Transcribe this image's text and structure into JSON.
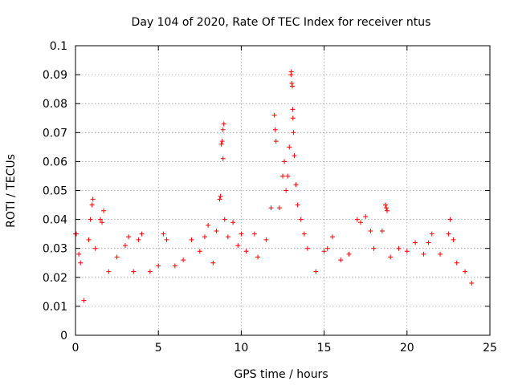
{
  "chart_data": {
    "type": "scatter",
    "title": "Day 104 of 2020, Rate Of TEC Index for receiver ntus",
    "xlabel": "GPS time / hours",
    "ylabel": "ROTI / TECUs",
    "xlim": [
      0,
      25
    ],
    "ylim": [
      0,
      0.1
    ],
    "x_ticks": [
      "0",
      "5",
      "10",
      "15",
      "20",
      "25"
    ],
    "y_ticks": [
      "0",
      "0.01",
      "0.02",
      "0.03",
      "0.04",
      "0.05",
      "0.06",
      "0.07",
      "0.08",
      "0.09",
      "0.1"
    ],
    "grid": true,
    "marker": "+",
    "color": "#ff0000",
    "series": [
      {
        "points": [
          [
            0.0,
            0.035
          ],
          [
            0.05,
            0.035
          ],
          [
            0.2,
            0.028
          ],
          [
            0.3,
            0.025
          ],
          [
            0.5,
            0.012
          ],
          [
            0.8,
            0.033
          ],
          [
            0.9,
            0.04
          ],
          [
            1.0,
            0.045
          ],
          [
            1.05,
            0.047
          ],
          [
            1.2,
            0.03
          ],
          [
            1.5,
            0.04
          ],
          [
            1.6,
            0.039
          ],
          [
            1.7,
            0.043
          ],
          [
            2.0,
            0.022
          ],
          [
            2.5,
            0.027
          ],
          [
            3.0,
            0.031
          ],
          [
            3.2,
            0.034
          ],
          [
            3.5,
            0.022
          ],
          [
            3.8,
            0.033
          ],
          [
            4.0,
            0.035
          ],
          [
            4.5,
            0.022
          ],
          [
            5.0,
            0.024
          ],
          [
            5.3,
            0.035
          ],
          [
            5.5,
            0.033
          ],
          [
            6.0,
            0.024
          ],
          [
            6.5,
            0.026
          ],
          [
            7.0,
            0.033
          ],
          [
            7.5,
            0.029
          ],
          [
            7.8,
            0.034
          ],
          [
            8.0,
            0.038
          ],
          [
            8.3,
            0.025
          ],
          [
            8.5,
            0.036
          ],
          [
            8.7,
            0.047
          ],
          [
            8.75,
            0.048
          ],
          [
            8.8,
            0.066
          ],
          [
            8.85,
            0.067
          ],
          [
            8.9,
            0.071
          ],
          [
            8.95,
            0.073
          ],
          [
            8.9,
            0.061
          ],
          [
            9.0,
            0.04
          ],
          [
            9.2,
            0.034
          ],
          [
            9.5,
            0.039
          ],
          [
            9.8,
            0.031
          ],
          [
            10.0,
            0.035
          ],
          [
            10.3,
            0.029
          ],
          [
            10.8,
            0.035
          ],
          [
            11.0,
            0.027
          ],
          [
            11.5,
            0.033
          ],
          [
            11.8,
            0.044
          ],
          [
            12.0,
            0.076
          ],
          [
            12.05,
            0.071
          ],
          [
            12.1,
            0.067
          ],
          [
            12.3,
            0.044
          ],
          [
            12.5,
            0.055
          ],
          [
            12.6,
            0.06
          ],
          [
            12.7,
            0.05
          ],
          [
            12.8,
            0.055
          ],
          [
            12.9,
            0.065
          ],
          [
            13.0,
            0.09
          ],
          [
            13.02,
            0.091
          ],
          [
            13.05,
            0.087
          ],
          [
            13.08,
            0.086
          ],
          [
            13.1,
            0.078
          ],
          [
            13.12,
            0.075
          ],
          [
            13.15,
            0.07
          ],
          [
            13.2,
            0.062
          ],
          [
            13.3,
            0.052
          ],
          [
            13.4,
            0.045
          ],
          [
            13.6,
            0.04
          ],
          [
            13.8,
            0.035
          ],
          [
            14.0,
            0.03
          ],
          [
            14.5,
            0.022
          ],
          [
            15.0,
            0.029
          ],
          [
            15.2,
            0.03
          ],
          [
            15.5,
            0.034
          ],
          [
            16.0,
            0.026
          ],
          [
            16.5,
            0.028
          ],
          [
            17.0,
            0.04
          ],
          [
            17.2,
            0.039
          ],
          [
            17.5,
            0.041
          ],
          [
            17.8,
            0.036
          ],
          [
            18.0,
            0.03
          ],
          [
            18.5,
            0.036
          ],
          [
            18.7,
            0.045
          ],
          [
            18.75,
            0.044
          ],
          [
            18.8,
            0.043
          ],
          [
            19.0,
            0.027
          ],
          [
            19.5,
            0.03
          ],
          [
            20.0,
            0.029
          ],
          [
            20.5,
            0.032
          ],
          [
            21.0,
            0.028
          ],
          [
            21.3,
            0.032
          ],
          [
            21.5,
            0.035
          ],
          [
            22.0,
            0.028
          ],
          [
            22.5,
            0.035
          ],
          [
            22.6,
            0.04
          ],
          [
            22.8,
            0.033
          ],
          [
            23.0,
            0.025
          ],
          [
            23.5,
            0.022
          ],
          [
            23.9,
            0.018
          ]
        ]
      }
    ]
  }
}
